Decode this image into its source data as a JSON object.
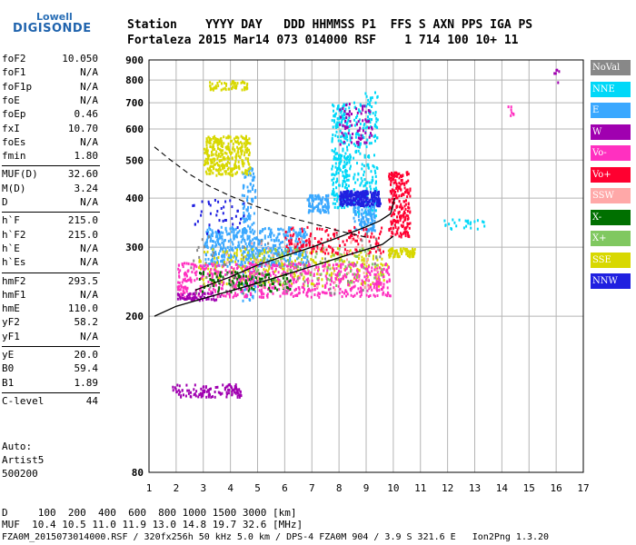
{
  "logo": {
    "top": "Lowell",
    "main": "DIGISONDE"
  },
  "header": {
    "line1": "Station    YYYY DAY   DDD HHMMSS P1  FFS S AXN PPS IGA PS",
    "line2": "Fortaleza 2015 Mar14 073 014000 RSF    1 714 100 10+ 11"
  },
  "params": [
    {
      "k": "foF2",
      "v": "10.050"
    },
    {
      "k": "foF1",
      "v": "N/A"
    },
    {
      "k": "foF1p",
      "v": "N/A"
    },
    {
      "k": "foE",
      "v": "N/A"
    },
    {
      "k": "foEp",
      "v": "0.46"
    },
    {
      "k": "fxI",
      "v": "10.70"
    },
    {
      "k": "foEs",
      "v": "N/A"
    },
    {
      "k": "fmin",
      "v": "1.80"
    },
    {
      "k": "MUF(D)",
      "v": "32.60"
    },
    {
      "k": "M(D)",
      "v": "3.24"
    },
    {
      "k": "D",
      "v": "N/A"
    },
    {
      "k": "h`F",
      "v": "215.0"
    },
    {
      "k": "h`F2",
      "v": "215.0"
    },
    {
      "k": "h`E",
      "v": "N/A"
    },
    {
      "k": "h`Es",
      "v": "N/A"
    },
    {
      "k": "hmF2",
      "v": "293.5"
    },
    {
      "k": "hmF1",
      "v": "N/A"
    },
    {
      "k": "hmE",
      "v": "110.0"
    },
    {
      "k": "yF2",
      "v": "58.2"
    },
    {
      "k": "yF1",
      "v": "N/A"
    },
    {
      "k": "yE",
      "v": "20.0"
    },
    {
      "k": "B0",
      "v": "59.4"
    },
    {
      "k": "B1",
      "v": "1.89"
    },
    {
      "k": "C-level",
      "v": "44"
    }
  ],
  "auto": {
    "l1": "Auto:",
    "l2": "Artist5",
    "l3": "500200"
  },
  "legend": [
    {
      "label": "NoVal",
      "color": "#888888"
    },
    {
      "label": "NNE",
      "color": "#00d8f8"
    },
    {
      "label": "E",
      "color": "#3aa8ff"
    },
    {
      "label": "W",
      "color": "#a000b0"
    },
    {
      "label": "Vo-",
      "color": "#ff30c0"
    },
    {
      "label": "Vo+",
      "color": "#ff0030"
    },
    {
      "label": "SSW",
      "color": "#ffa8a8"
    },
    {
      "label": "X-",
      "color": "#007000"
    },
    {
      "label": "X+",
      "color": "#80c860"
    },
    {
      "label": "SSE",
      "color": "#d8d800"
    },
    {
      "label": "NNW",
      "color": "#2020e0"
    }
  ],
  "bottom": {
    "d_row": "D     100  200  400  600  800 1000 1500 3000 [km]",
    "muf_row": "MUF  10.4 10.5 11.0 11.9 13.0 14.8 19.7 32.6 [MHz]",
    "footer": "FZA0M_2015073014000.RSF / 320fx256h 50 kHz 5.0 km / DPS-4 FZA0M 904 / 3.9 S 321.6 E   Ion2Png 1.3.20"
  },
  "chart_data": {
    "type": "scatter",
    "x_ticks": [
      1,
      2,
      3,
      4,
      5,
      6,
      7,
      8,
      9,
      10,
      11,
      12,
      13,
      14,
      15,
      16,
      17
    ],
    "y_ticks": [
      80,
      200,
      300,
      400,
      500,
      600,
      700,
      800,
      900
    ],
    "xlim": [
      1,
      17
    ],
    "ylim": [
      80,
      900
    ],
    "y_scale": "log",
    "grid": true,
    "legend_placement": "right",
    "profile_curve": [
      [
        1.2,
        200
      ],
      [
        2,
        212
      ],
      [
        3,
        222
      ],
      [
        4,
        232
      ],
      [
        5,
        243
      ],
      [
        6,
        255
      ],
      [
        7,
        268
      ],
      [
        8,
        282
      ],
      [
        9,
        296
      ],
      [
        9.6,
        305
      ],
      [
        10,
        320
      ]
    ],
    "trace_curve": [
      [
        2.7,
        233
      ],
      [
        4,
        252
      ],
      [
        5,
        270
      ],
      [
        6,
        285
      ],
      [
        7,
        300
      ],
      [
        8,
        318
      ],
      [
        9,
        338
      ],
      [
        9.5,
        350
      ],
      [
        9.9,
        365
      ],
      [
        10.05,
        400
      ]
    ],
    "dashed_curve": [
      [
        1.2,
        540
      ],
      [
        1.8,
        500
      ],
      [
        2.5,
        460
      ],
      [
        3.2,
        430
      ],
      [
        4,
        405
      ],
      [
        5,
        380
      ],
      [
        6,
        360
      ],
      [
        7,
        345
      ],
      [
        8,
        330
      ],
      [
        9,
        318
      ]
    ],
    "echo_clusters": [
      {
        "class": "NNE",
        "x": [
          7.7,
          8.4
        ],
        "y": [
          380,
          700
        ],
        "n": 260
      },
      {
        "class": "NNE",
        "x": [
          8.5,
          9.4
        ],
        "y": [
          360,
          750
        ],
        "n": 200
      },
      {
        "class": "E",
        "x": [
          3.0,
          6.8
        ],
        "y": [
          270,
          340
        ],
        "n": 520
      },
      {
        "class": "E",
        "x": [
          4.4,
          4.9
        ],
        "y": [
          220,
          480
        ],
        "n": 150
      },
      {
        "class": "E",
        "x": [
          6.8,
          7.6
        ],
        "y": [
          370,
          410
        ],
        "n": 90
      },
      {
        "class": "E",
        "x": [
          8.5,
          9.3
        ],
        "y": [
          330,
          390
        ],
        "n": 110
      },
      {
        "class": "NNW",
        "x": [
          8.0,
          9.5
        ],
        "y": [
          385,
          420
        ],
        "n": 260
      },
      {
        "class": "SSE",
        "x": [
          3.0,
          4.7
        ],
        "y": [
          460,
          580
        ],
        "n": 330
      },
      {
        "class": "SSE",
        "x": [
          3.2,
          4.6
        ],
        "y": [
          760,
          800
        ],
        "n": 60
      },
      {
        "class": "SSE",
        "x": [
          2.8,
          9.8
        ],
        "y": [
          240,
          300
        ],
        "n": 320
      },
      {
        "class": "SSE",
        "x": [
          9.8,
          10.8
        ],
        "y": [
          285,
          300
        ],
        "n": 80
      },
      {
        "class": "Vo-",
        "x": [
          2.0,
          9.9
        ],
        "y": [
          225,
          275
        ],
        "n": 650
      },
      {
        "class": "Vo+",
        "x": [
          9.8,
          10.6
        ],
        "y": [
          320,
          470
        ],
        "n": 220
      },
      {
        "class": "Vo+",
        "x": [
          6.0,
          9.7
        ],
        "y": [
          290,
          340
        ],
        "n": 150
      },
      {
        "class": "W",
        "x": [
          2.0,
          3.6
        ],
        "y": [
          221,
          232
        ],
        "n": 60
      },
      {
        "class": "W",
        "x": [
          1.8,
          4.4
        ],
        "y": [
          125,
          135
        ],
        "n": 110
      },
      {
        "class": "W",
        "x": [
          8.0,
          9.2
        ],
        "y": [
          550,
          700
        ],
        "n": 70
      },
      {
        "class": "X-",
        "x": [
          2.8,
          6.2
        ],
        "y": [
          232,
          262
        ],
        "n": 110
      },
      {
        "class": "X+",
        "x": [
          4.8,
          9.6
        ],
        "y": [
          240,
          300
        ],
        "n": 90
      },
      {
        "class": "SSW",
        "x": [
          3.5,
          9.5
        ],
        "y": [
          235,
          320
        ],
        "n": 60
      },
      {
        "class": "NoVal",
        "x": [
          2.5,
          9.5
        ],
        "y": [
          230,
          330
        ],
        "n": 60
      },
      {
        "class": "NNE",
        "x": [
          11.8,
          13.8
        ],
        "y": [
          335,
          355
        ],
        "n": 25
      },
      {
        "class": "NNW",
        "x": [
          2.5,
          4.5
        ],
        "y": [
          320,
          400
        ],
        "n": 40
      },
      {
        "class": "Vo-",
        "x": [
          14.2,
          14.6
        ],
        "y": [
          640,
          690
        ],
        "n": 8
      },
      {
        "class": "W",
        "x": [
          15.9,
          16.1
        ],
        "y": [
          780,
          860
        ],
        "n": 6
      }
    ]
  }
}
